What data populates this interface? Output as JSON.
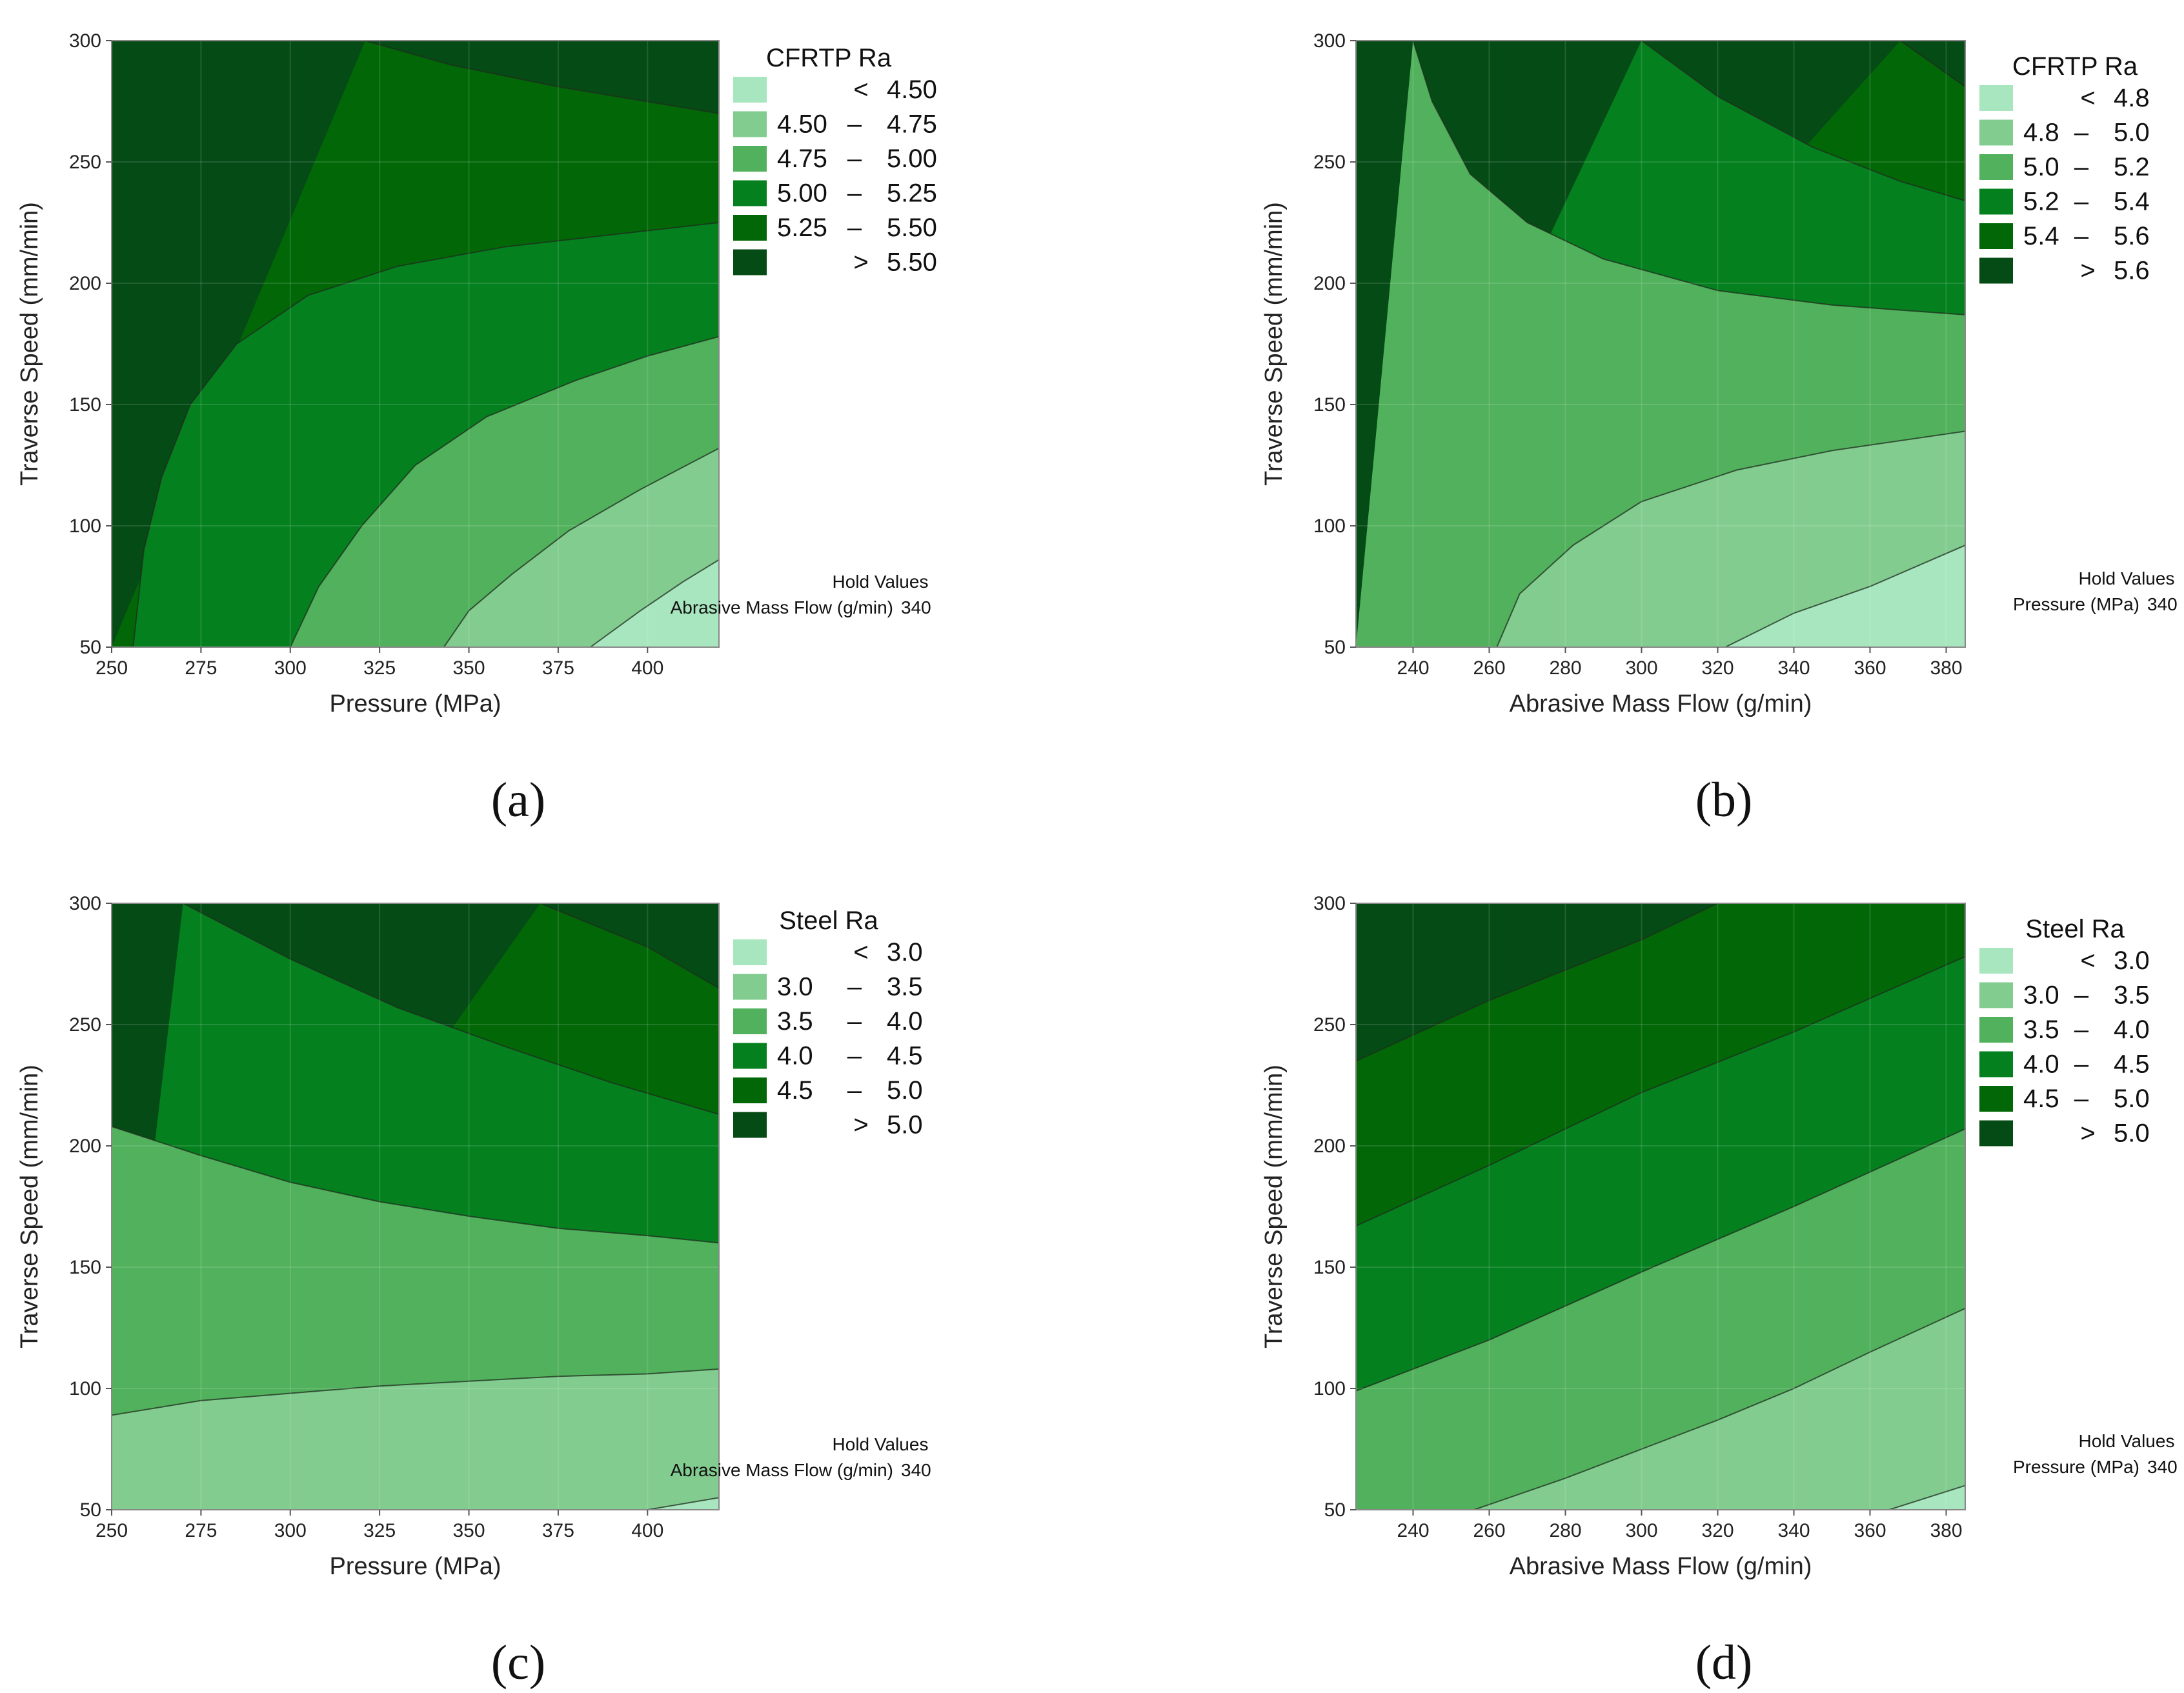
{
  "colors": {
    "bands": [
      "#a8e6bf",
      "#82cc90",
      "#52b15c",
      "#05801f",
      "#026707",
      "#054b16"
    ],
    "frame": "#888888",
    "contour_line": "#1e2e1e"
  },
  "chart_data": [
    {
      "type": "contour",
      "panel": "(a)",
      "x_key": "pressure",
      "xlabel": "Pressure (MPa)",
      "ylabel": "Traverse Speed (mm/min)",
      "xlim": [
        250,
        420
      ],
      "ylim": [
        50,
        300
      ],
      "xticks": [
        "250",
        "275",
        "300",
        "325",
        "350",
        "375",
        "400"
      ],
      "yticks": [
        "50",
        "100",
        "150",
        "200",
        "250",
        "300"
      ],
      "legend_title": "CFRTP Ra",
      "legend": [
        "<  4.50",
        "4.50  –  4.75",
        "4.75  –  5.00",
        "5.00  –  5.25",
        "5.25  –  5.50",
        ">  5.50"
      ],
      "levels": [
        4.5,
        4.75,
        5.0,
        5.25,
        5.5
      ],
      "boundaries": [
        {
          "level": 5.5,
          "points": [
            [
              321,
              300
            ],
            [
              345,
              290
            ],
            [
              375,
              281
            ],
            [
              420,
              270
            ]
          ]
        },
        {
          "level": 5.25,
          "points": [
            [
              256,
              50
            ],
            [
              259,
              90
            ],
            [
              264,
              120
            ],
            [
              272,
              150
            ],
            [
              285,
              175
            ],
            [
              305,
              195
            ],
            [
              330,
              207
            ],
            [
              360,
              215
            ],
            [
              390,
              220
            ],
            [
              420,
              225
            ]
          ]
        },
        {
          "level": 5.0,
          "points": [
            [
              300,
              50
            ],
            [
              308,
              75
            ],
            [
              320,
              100
            ],
            [
              335,
              125
            ],
            [
              355,
              145
            ],
            [
              380,
              160
            ],
            [
              400,
              170
            ],
            [
              420,
              178
            ]
          ]
        },
        {
          "level": 4.75,
          "points": [
            [
              343,
              50
            ],
            [
              350,
              65
            ],
            [
              362,
              80
            ],
            [
              378,
              98
            ],
            [
              398,
              115
            ],
            [
              420,
              132
            ]
          ]
        },
        {
          "level": 4.5,
          "points": [
            [
              384,
              50
            ],
            [
              398,
              65
            ],
            [
              410,
              77
            ],
            [
              420,
              86
            ]
          ]
        }
      ],
      "hold_title": "Hold Values",
      "hold_label": "Abrasive Mass Flow (g/min)",
      "hold_value": "340"
    },
    {
      "type": "contour",
      "panel": "(b)",
      "x_key": "abrasive mass flow",
      "xlabel": "Abrasive Mass Flow (g/min)",
      "ylabel": "Traverse Speed (mm/min)",
      "xlim": [
        225,
        385
      ],
      "ylim": [
        50,
        300
      ],
      "xticks": [
        "240",
        "260",
        "280",
        "300",
        "320",
        "340",
        "360",
        "380"
      ],
      "yticks": [
        "50",
        "100",
        "150",
        "200",
        "250",
        "300"
      ],
      "legend_title": "CFRTP Ra",
      "legend": [
        "<  4.8",
        "4.8  –  5.0",
        "5.0  –  5.2",
        "5.2  –  5.4",
        "5.4  –  5.6",
        ">  5.6"
      ],
      "levels": [
        4.8,
        5.0,
        5.2,
        5.4,
        5.6
      ],
      "boundaries": [
        {
          "level": 5.6,
          "points": [
            [
              368,
              300
            ],
            [
              385,
              281
            ]
          ]
        },
        {
          "level": 5.4,
          "points": [
            [
              300,
              300
            ],
            [
              320,
              277
            ],
            [
              345,
              256
            ],
            [
              368,
              242
            ],
            [
              385,
              234
            ]
          ]
        },
        {
          "level": 5.2,
          "points": [
            [
              240,
              300
            ],
            [
              245,
              275
            ],
            [
              255,
              245
            ],
            [
              270,
              225
            ],
            [
              290,
              210
            ],
            [
              320,
              197
            ],
            [
              350,
              191
            ],
            [
              385,
              187
            ]
          ]
        },
        {
          "level": 5.0,
          "points": [
            [
              262,
              50
            ],
            [
              268,
              72
            ],
            [
              282,
              92
            ],
            [
              300,
              110
            ],
            [
              325,
              123
            ],
            [
              350,
              131
            ],
            [
              385,
              139
            ]
          ]
        },
        {
          "level": 4.8,
          "points": [
            [
              322,
              50
            ],
            [
              340,
              64
            ],
            [
              360,
              75
            ],
            [
              385,
              92
            ]
          ]
        }
      ],
      "hold_title": "Hold Values",
      "hold_label": "Pressure (MPa)",
      "hold_value": "340"
    },
    {
      "type": "contour",
      "panel": "(c)",
      "x_key": "pressure",
      "xlabel": "Pressure (MPa)",
      "ylabel": "Traverse Speed (mm/min)",
      "xlim": [
        250,
        420
      ],
      "ylim": [
        50,
        300
      ],
      "xticks": [
        "250",
        "275",
        "300",
        "325",
        "350",
        "375",
        "400"
      ],
      "yticks": [
        "50",
        "100",
        "150",
        "200",
        "250",
        "300"
      ],
      "legend_title": "Steel Ra",
      "legend": [
        "<  3.0",
        "3.0  –  3.5",
        "3.5  –  4.0",
        "4.0  –  4.5",
        "4.5  –  5.0",
        ">  5.0"
      ],
      "levels": [
        3.0,
        3.5,
        4.0,
        4.5,
        5.0
      ],
      "boundaries": [
        {
          "level": 5.0,
          "points": [
            [
              370,
              300
            ],
            [
              400,
              282
            ],
            [
              420,
              265
            ]
          ]
        },
        {
          "level": 4.5,
          "points": [
            [
              270,
              300
            ],
            [
              300,
              277
            ],
            [
              330,
              257
            ],
            [
              360,
              241
            ],
            [
              390,
              226
            ],
            [
              420,
              213
            ]
          ]
        },
        {
          "level": 4.0,
          "points": [
            [
              250,
              208
            ],
            [
              275,
              196
            ],
            [
              300,
              185
            ],
            [
              325,
              177
            ],
            [
              350,
              171
            ],
            [
              375,
              166
            ],
            [
              400,
              163
            ],
            [
              420,
              160
            ]
          ]
        },
        {
          "level": 3.5,
          "points": [
            [
              250,
              89
            ],
            [
              275,
              95
            ],
            [
              300,
              98
            ],
            [
              325,
              101
            ],
            [
              350,
              103
            ],
            [
              375,
              105
            ],
            [
              400,
              106
            ],
            [
              420,
              108
            ]
          ]
        },
        {
          "level": 3.0,
          "points": [
            [
              400,
              50
            ],
            [
              420,
              55
            ]
          ]
        }
      ],
      "hold_title": "Hold Values",
      "hold_label": "Abrasive Mass Flow (g/min)",
      "hold_value": "340"
    },
    {
      "type": "contour",
      "panel": "(d)",
      "x_key": "abrasive mass flow",
      "xlabel": "Abrasive Mass Flow (g/min)",
      "ylabel": "Traverse Speed (mm/min)",
      "xlim": [
        225,
        385
      ],
      "ylim": [
        50,
        300
      ],
      "xticks": [
        "240",
        "260",
        "280",
        "300",
        "320",
        "340",
        "360",
        "380"
      ],
      "yticks": [
        "50",
        "100",
        "150",
        "200",
        "250",
        "300"
      ],
      "legend_title": "Steel Ra",
      "legend": [
        "<  3.0",
        "3.0  –  3.5",
        "3.5  –  4.0",
        "4.0  –  4.5",
        "4.5  –  5.0",
        ">  5.0"
      ],
      "levels": [
        3.0,
        3.5,
        4.0,
        4.5,
        5.0
      ],
      "boundaries": [
        {
          "level": 5.0,
          "points": [
            [
              225,
              235
            ],
            [
              260,
              260
            ],
            [
              300,
              285
            ],
            [
              320,
              300
            ]
          ]
        },
        {
          "level": 4.5,
          "points": [
            [
              225,
              167
            ],
            [
              260,
              192
            ],
            [
              300,
              222
            ],
            [
              340,
              247
            ],
            [
              385,
              278
            ]
          ]
        },
        {
          "level": 4.0,
          "points": [
            [
              225,
              99
            ],
            [
              260,
              120
            ],
            [
              300,
              148
            ],
            [
              340,
              175
            ],
            [
              385,
              207
            ]
          ]
        },
        {
          "level": 3.5,
          "points": [
            [
              256,
              50
            ],
            [
              280,
              63
            ],
            [
              300,
              75
            ],
            [
              320,
              87
            ],
            [
              340,
              100
            ],
            [
              360,
              115
            ],
            [
              385,
              133
            ]
          ]
        },
        {
          "level": 3.0,
          "points": [
            [
              365,
              50
            ],
            [
              385,
              60
            ]
          ]
        }
      ],
      "hold_title": "Hold Values",
      "hold_label": "Pressure (MPa)",
      "hold_value": "340"
    }
  ]
}
